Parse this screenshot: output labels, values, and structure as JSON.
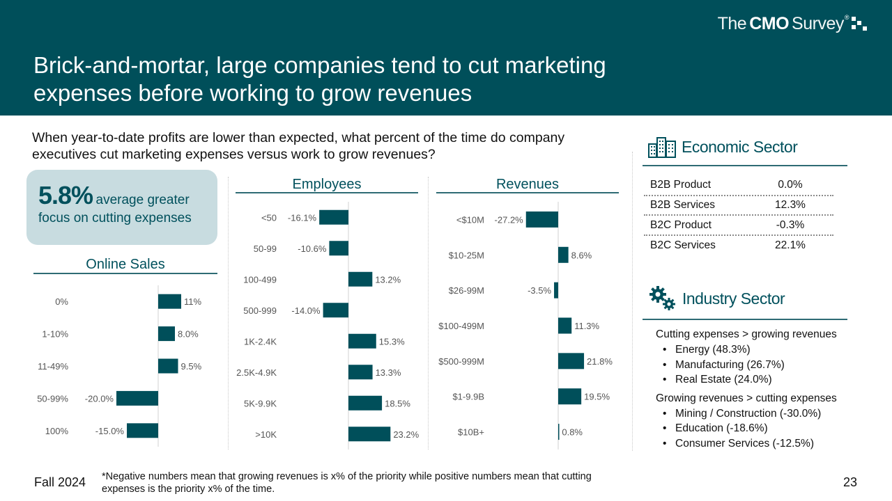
{
  "header": {
    "title": "Brick-and-mortar, large companies tend to cut marketing expenses before working to grow revenues",
    "logo": {
      "prefix": "The",
      "brand": "CMO",
      "suffix": "Survey",
      "registered": "®"
    }
  },
  "question": "When year-to-date profits are lower than expected, what percent of the time do company executives cut marketing expenses versus work to grow revenues?",
  "callout": {
    "value": "5.8%",
    "text_inline": "average greater",
    "text_line2": "focus on cutting expenses"
  },
  "economic_sector": {
    "title": "Economic Sector",
    "rows": [
      {
        "label": "B2B Product",
        "value": "0.0%"
      },
      {
        "label": "B2B Services",
        "value": "12.3%"
      },
      {
        "label": "B2C Product",
        "value": "-0.3%"
      },
      {
        "label": "B2C Services",
        "value": "22.1%"
      }
    ]
  },
  "industry_sector": {
    "title": "Industry Sector",
    "groups": [
      {
        "title": "Cutting expenses > growing revenues",
        "items": [
          "Energy (48.3%)",
          "Manufacturing (26.7%)",
          "Real Estate (24.0%)"
        ]
      },
      {
        "title": "Growing revenues > cutting expenses",
        "items": [
          "Mining / Construction (-30.0%)",
          "Education (-18.6%)",
          "Consumer Services (-12.5%)"
        ]
      }
    ]
  },
  "chart_data": [
    {
      "type": "bar",
      "orientation": "horizontal",
      "title": "Online Sales",
      "categories": [
        "0%",
        "1-10%",
        "11-49%",
        "50-99%",
        "100%"
      ],
      "values": [
        11.0,
        8.0,
        9.5,
        -20.0,
        -15.0
      ],
      "labels": [
        "11%",
        "8.0%",
        "9.5%",
        "-20.0%",
        "-15.0%"
      ],
      "color": "#004f5a"
    },
    {
      "type": "bar",
      "orientation": "horizontal",
      "title": "Employees",
      "categories": [
        "<50",
        "50-99",
        "100-499",
        "500-999",
        "1K-2.4K",
        "2.5K-4.9K",
        "5K-9.9K",
        ">10K"
      ],
      "values": [
        -16.1,
        -10.6,
        13.2,
        -14.0,
        15.3,
        13.3,
        18.5,
        23.2
      ],
      "labels": [
        "-16.1%",
        "-10.6%",
        "13.2%",
        "-14.0%",
        "15.3%",
        "13.3%",
        "18.5%",
        "23.2%"
      ],
      "color": "#004f5a"
    },
    {
      "type": "bar",
      "orientation": "horizontal",
      "title": "Revenues",
      "categories": [
        "<$10M",
        "$10-25M",
        "$26-99M",
        "$100-499M",
        "$500-999M",
        "$1-9.9B",
        "$10B+"
      ],
      "values": [
        -27.2,
        8.6,
        -3.5,
        11.3,
        21.8,
        19.5,
        0.8
      ],
      "labels": [
        "-27.2%",
        "8.6%",
        "-3.5%",
        "11.3%",
        "21.8%",
        "19.5%",
        "0.8%"
      ],
      "color": "#004f5a"
    }
  ],
  "footer": {
    "season": "Fall 2024",
    "footnote": "*Negative numbers mean that growing revenues is x% of the priority while positive numbers mean that cutting expenses is the priority x% of the time.",
    "page": "23"
  }
}
